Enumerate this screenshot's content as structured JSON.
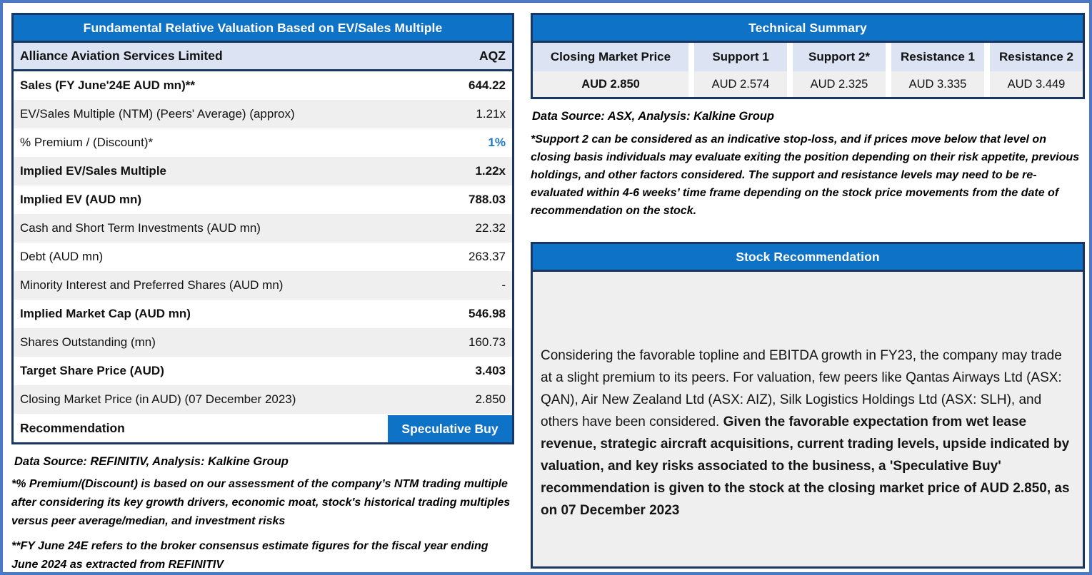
{
  "colors": {
    "header_blue": "#0e73c6",
    "navy_border": "#1a3763",
    "outer_frame_blue": "#4c79c6",
    "subheader_lavender": "#dce3f3",
    "stripe_gray": "#efefef",
    "accent_value_blue": "#1e78c8"
  },
  "valuation": {
    "title": "Fundamental Relative Valuation Based on EV/Sales Multiple",
    "company": "Alliance Aviation Services Limited",
    "ticker": "AQZ",
    "rows": [
      {
        "label": "Sales (FY June'24E AUD mn)**",
        "value": "644.22",
        "bold": true
      },
      {
        "label": "EV/Sales Multiple (NTM)  (Peers' Average) (approx)",
        "value": "1.21x",
        "bold": false
      },
      {
        "label": "% Premium / (Discount)*",
        "value": "1%",
        "bold": false,
        "accent": true
      },
      {
        "label": "Implied EV/Sales Multiple",
        "value": "1.22x",
        "bold": true
      },
      {
        "label": "Implied EV (AUD mn)",
        "value": "788.03",
        "bold": true
      },
      {
        "label": "Cash and Short Term Investments (AUD mn)",
        "value": "22.32",
        "bold": false
      },
      {
        "label": "Debt (AUD mn)",
        "value": "263.37",
        "bold": false
      },
      {
        "label": "Minority Interest and Preferred Shares (AUD mn)",
        "value": "-",
        "bold": false
      },
      {
        "label": "Implied Market Cap (AUD mn)",
        "value": "546.98",
        "bold": true
      },
      {
        "label": "Shares Outstanding (mn)",
        "value": "160.73",
        "bold": false
      },
      {
        "label": "Target Share Price (AUD)",
        "value": "3.403",
        "bold": true
      },
      {
        "label": "Closing Market Price (in AUD) (07 December 2023)",
        "value": "2.850",
        "bold": false
      }
    ],
    "recommendation_label": "Recommendation",
    "recommendation_value": "Speculative Buy",
    "source": "Data Source: REFINITIV, Analysis: Kalkine Group",
    "note1": "*% Premium/(Discount) is based on our assessment of the company’s NTM trading multiple after considering its key growth drivers, economic moat, stock's historical trading multiples versus peer average/median, and investment risks",
    "note2": "**FY June 24E refers to the broker consensus estimate figures for the fiscal year ending June 2024  as extracted from REFINITIV"
  },
  "technical": {
    "title": "Technical Summary",
    "columns": [
      {
        "header": "Closing Market Price",
        "value": "AUD 2.850",
        "bold": true
      },
      {
        "header": "Support 1",
        "value": "AUD 2.574",
        "bold": false
      },
      {
        "header": "Support 2*",
        "value": "AUD 2.325",
        "bold": false
      },
      {
        "header": "Resistance 1",
        "value": "AUD 3.335",
        "bold": false
      },
      {
        "header": "Resistance 2",
        "value": "AUD 3.449",
        "bold": false
      }
    ],
    "source": "Data Source: ASX, Analysis: Kalkine Group",
    "note": "*Support 2 can be considered as an indicative stop-loss, and if prices move below that level on closing basis individuals may evaluate exiting the position depending on their risk appetite, previous holdings, and other factors considered. The support and resistance levels may need to be re-evaluated within 4-6 weeks’ time frame depending on the stock price movements from the date of recommendation on the stock."
  },
  "recommendation_box": {
    "title": "Stock Recommendation",
    "text_regular": "Considering the favorable topline and EBITDA growth in FY23, the company may trade at a slight premium to its peers. For valuation, few peers like Qantas Airways Ltd (ASX: QAN), Air New Zealand Ltd (ASX: AIZ), Silk Logistics Holdings Ltd (ASX: SLH), and others have been considered. ",
    "text_bold": "Given the favorable expectation from wet lease revenue, strategic aircraft acquisitions, current trading levels, upside indicated by valuation, and key risks associated to the business, a 'Speculative Buy' recommendation is given to the stock at the closing market price of AUD 2.850, as on 07 December 2023"
  }
}
